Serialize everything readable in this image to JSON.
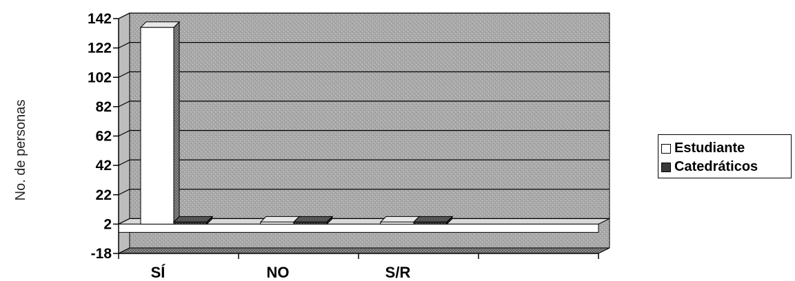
{
  "chart_data": {
    "type": "bar",
    "ylabel": "No. de personas",
    "xlabel": "",
    "categories": [
      "SÍ",
      "NO",
      "S/R"
    ],
    "series": [
      {
        "name": "Estudiante",
        "values": [
          136,
          2,
          0
        ],
        "color": "#ffffff"
      },
      {
        "name": "Catedráticos",
        "values": [
          3,
          1,
          1
        ],
        "color": "#3a3a3a"
      }
    ],
    "yticks": [
      "142",
      "122",
      "102",
      "82",
      "62",
      "42",
      "22",
      "2",
      "-18"
    ],
    "ylim": [
      -18,
      142
    ],
    "grid": true,
    "legend_position": "right",
    "style": "3d",
    "colors": {
      "wall": "#a9a9a9",
      "floor": "#7a7a7a",
      "gridline": "#000000"
    }
  }
}
